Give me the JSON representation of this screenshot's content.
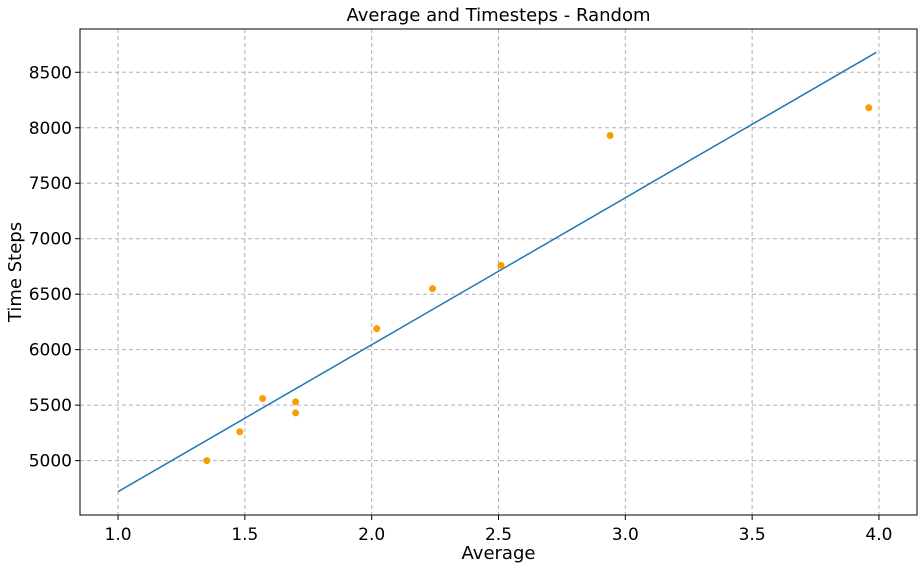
{
  "chart_data": {
    "type": "scatter",
    "title": "Average and Timesteps - Random",
    "xlabel": "Average",
    "ylabel": "Time Steps",
    "xlim": [
      0.85,
      4.15
    ],
    "ylim": [
      4510,
      8890
    ],
    "xticks": [
      1.0,
      1.5,
      2.0,
      2.5,
      3.0,
      3.5,
      4.0
    ],
    "xtick_labels": [
      "1.0",
      "1.5",
      "2.0",
      "2.5",
      "3.0",
      "3.5",
      "4.0"
    ],
    "yticks": [
      5000,
      5500,
      6000,
      6500,
      7000,
      7500,
      8000,
      8500
    ],
    "ytick_labels": [
      "5000",
      "5500",
      "6000",
      "6500",
      "7000",
      "7500",
      "8000",
      "8500"
    ],
    "grid": true,
    "series": [
      {
        "kind": "scatter",
        "color": "#f5a000",
        "points": [
          {
            "x": 1.35,
            "y": 5000
          },
          {
            "x": 1.48,
            "y": 5260
          },
          {
            "x": 1.57,
            "y": 5560
          },
          {
            "x": 1.7,
            "y": 5430
          },
          {
            "x": 1.7,
            "y": 5530
          },
          {
            "x": 2.02,
            "y": 6190
          },
          {
            "x": 2.24,
            "y": 6550
          },
          {
            "x": 2.51,
            "y": 6760
          },
          {
            "x": 2.94,
            "y": 7930
          },
          {
            "x": 3.96,
            "y": 8180
          }
        ]
      },
      {
        "kind": "line",
        "color": "#1f77b4",
        "points": [
          {
            "x": 1.0,
            "y": 4720
          },
          {
            "x": 3.99,
            "y": 8680
          }
        ]
      }
    ]
  }
}
